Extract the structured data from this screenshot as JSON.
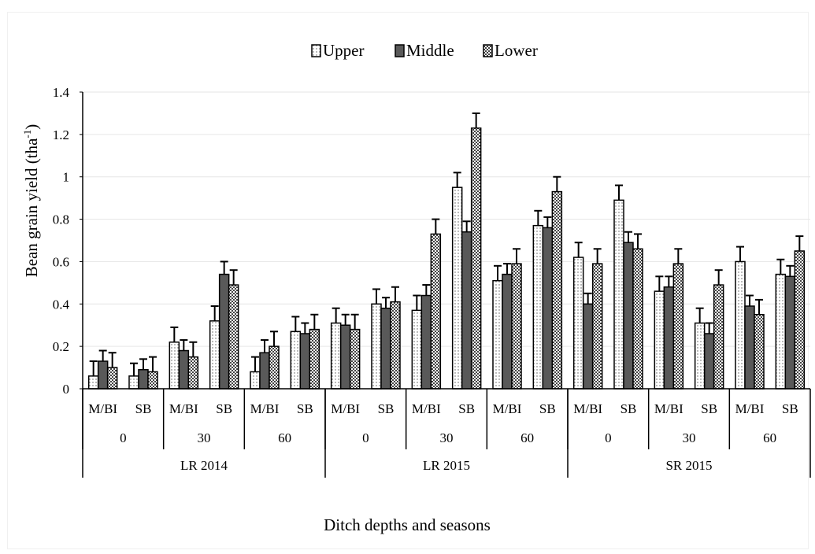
{
  "chart_data": {
    "type": "bar",
    "title": "",
    "xlabel": "Ditch depths and seasons",
    "ylabel_main": "Bean grain yield (tha",
    "ylabel_sup": "-1",
    "ylabel_end": ")",
    "ylim": [
      0,
      1.4
    ],
    "yticks": [
      "0",
      "0.2",
      "0.4",
      "0.6",
      "0.8",
      "1",
      "1.2",
      "1.4"
    ],
    "ytick_values": [
      0,
      0.2,
      0.4,
      0.6,
      0.8,
      1.0,
      1.2,
      1.4
    ],
    "grid": true,
    "legend_position": "top",
    "levels": {
      "seasons": [
        "LR 2014",
        "LR 2015",
        "SR 2015"
      ],
      "depths": [
        "0",
        "30",
        "60"
      ],
      "methods": [
        "M/BI",
        "SB"
      ]
    },
    "categories": [
      "LR 2014 | 0 | M/BI",
      "LR 2014 | 0 | SB",
      "LR 2014 | 30 | M/BI",
      "LR 2014 | 30 | SB",
      "LR 2014 | 60 | M/BI",
      "LR 2014 | 60 | SB",
      "LR 2015 | 0 | M/BI",
      "LR 2015 | 0 | SB",
      "LR 2015 | 30 | M/BI",
      "LR 2015 | 30 | SB",
      "LR 2015 | 60 | M/BI",
      "LR 2015 | 60 | SB",
      "SR 2015 | 0 | M/BI",
      "SR 2015 | 0 | SB",
      "SR 2015 | 30 | M/BI",
      "SR 2015 | 30 | SB",
      "SR 2015 | 60 | M/BI",
      "SR 2015 | 60 | SB"
    ],
    "series": [
      {
        "name": "Upper",
        "pattern": "dots",
        "values": [
          0.06,
          0.06,
          0.22,
          0.32,
          0.08,
          0.27,
          0.31,
          0.4,
          0.37,
          0.95,
          0.51,
          0.77,
          0.62,
          0.89,
          0.46,
          0.31,
          0.6,
          0.54
        ],
        "errors": [
          0.07,
          0.06,
          0.07,
          0.07,
          0.07,
          0.07,
          0.07,
          0.07,
          0.07,
          0.07,
          0.07,
          0.07,
          0.07,
          0.07,
          0.07,
          0.07,
          0.07,
          0.07
        ]
      },
      {
        "name": "Middle",
        "pattern": "solid",
        "values": [
          0.13,
          0.09,
          0.18,
          0.54,
          0.17,
          0.26,
          0.3,
          0.38,
          0.44,
          0.74,
          0.54,
          0.76,
          0.4,
          0.69,
          0.48,
          0.26,
          0.39,
          0.53
        ],
        "errors": [
          0.05,
          0.05,
          0.05,
          0.06,
          0.06,
          0.05,
          0.05,
          0.05,
          0.05,
          0.05,
          0.05,
          0.05,
          0.05,
          0.05,
          0.05,
          0.05,
          0.05,
          0.05
        ]
      },
      {
        "name": "Lower",
        "pattern": "checker",
        "values": [
          0.1,
          0.08,
          0.15,
          0.49,
          0.2,
          0.28,
          0.28,
          0.41,
          0.73,
          1.23,
          0.59,
          0.93,
          0.59,
          0.66,
          0.59,
          0.49,
          0.35,
          0.65
        ],
        "errors": [
          0.07,
          0.07,
          0.07,
          0.07,
          0.07,
          0.07,
          0.07,
          0.07,
          0.07,
          0.07,
          0.07,
          0.07,
          0.07,
          0.07,
          0.07,
          0.07,
          0.07,
          0.07
        ]
      }
    ]
  }
}
